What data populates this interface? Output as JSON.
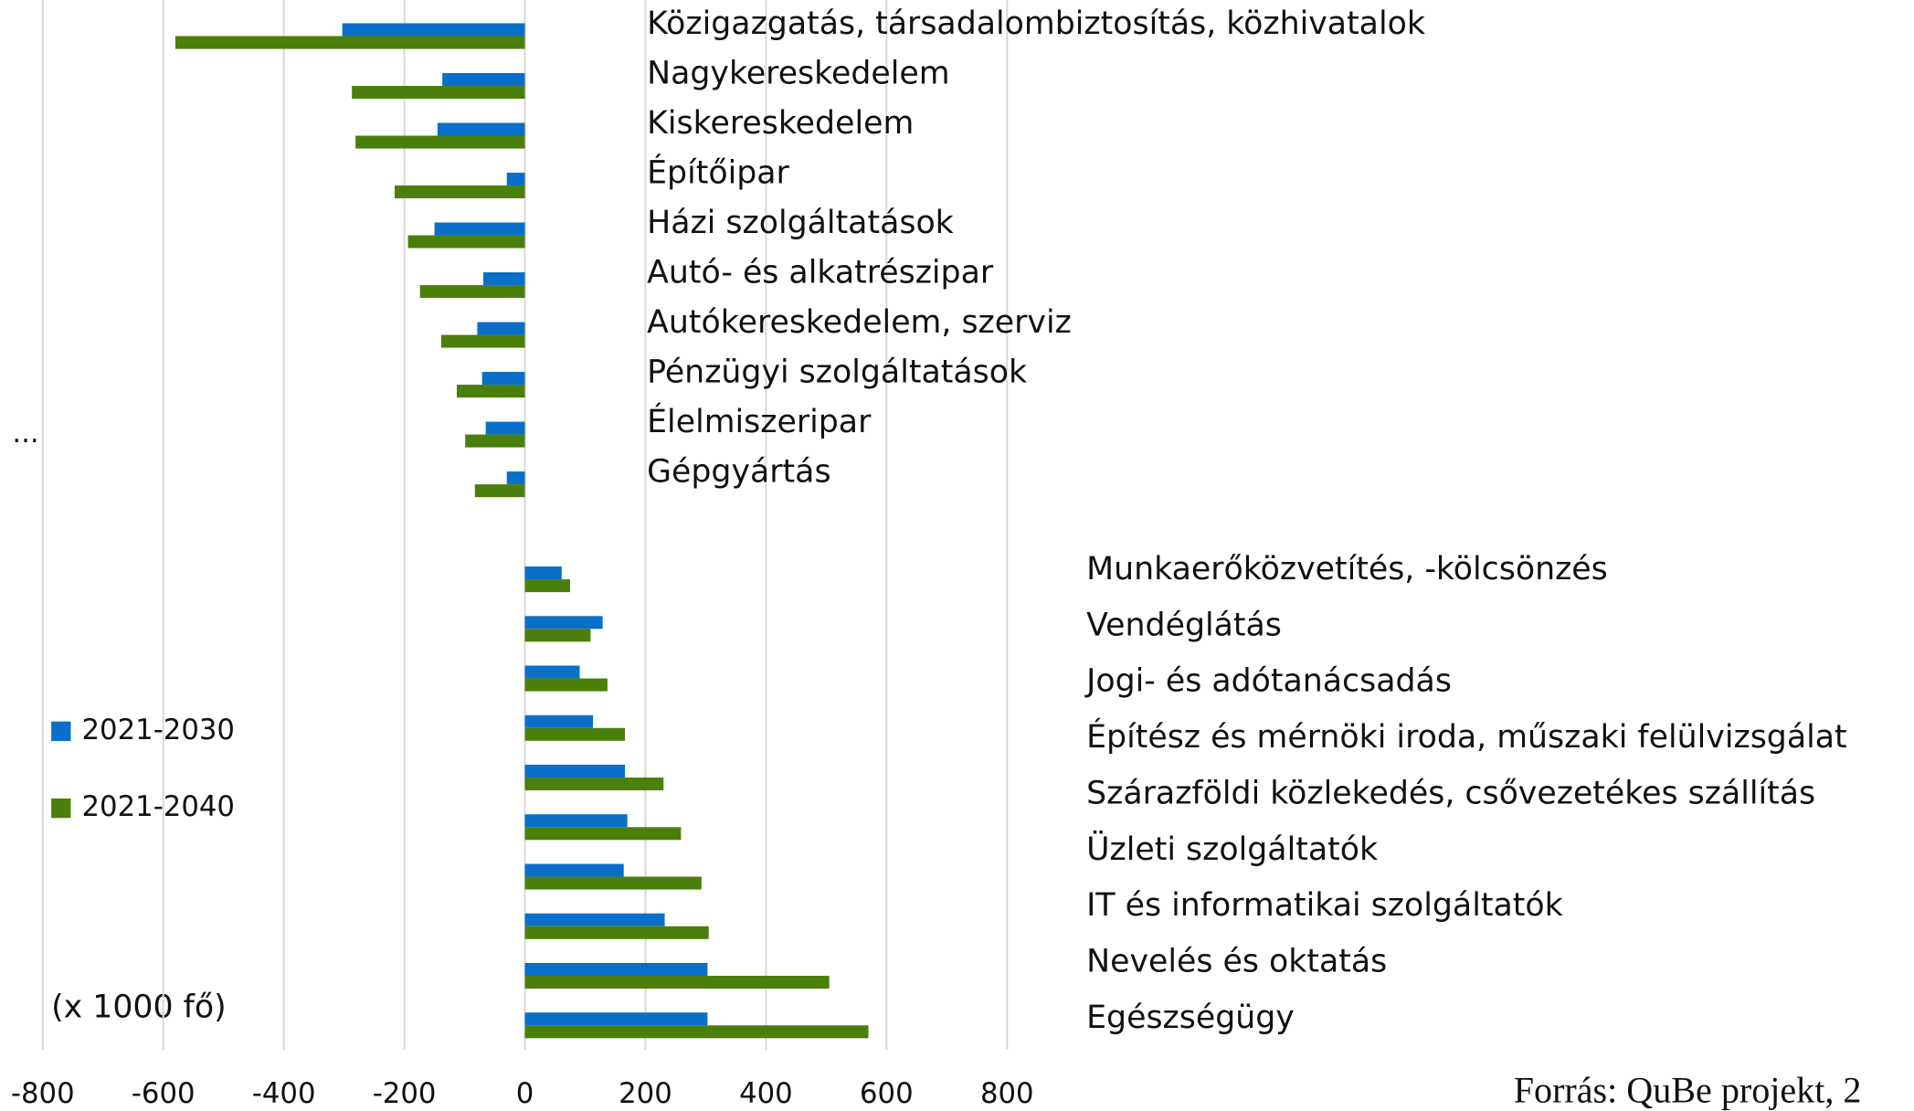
{
  "chart_data": {
    "type": "bar",
    "orientation": "horizontal",
    "categories": [
      "Közigazgatás, társadalombiztosítás, közhivatalok",
      "Nagykereskedelem",
      "Kiskereskedelem",
      "Építőipar",
      "Házi szolgáltatások",
      "Autó- és alkatrészipar",
      "Autókereskedelem, szerviz",
      "Pénzügyi szolgáltatások",
      "Élelmiszeripar",
      "Gépgyártás",
      "Munkaerőközvetítés, -kölcsönzés",
      "Vendéglátás",
      "Jogi- és adótanácsadás",
      "Építész és mérnöki iroda, műszaki felülvizsgálat",
      "Szárazföldi közlekedés, csővezetékes szállítás",
      "Üzleti szolgáltatók",
      "IT és informatikai szolgáltatók",
      "Nevelés és oktatás",
      null,
      "Egészségügy"
    ],
    "series": [
      {
        "name": "2021-2030",
        "color": "#0a6fc8",
        "values": [
          -303,
          -137,
          -145,
          -30,
          -150,
          -69,
          -79,
          -71,
          -65,
          -30,
          61,
          129,
          91,
          113,
          166,
          170,
          164,
          232,
          303,
          303
        ]
      },
      {
        "name": "2021-2040",
        "color": "#4a7f0c",
        "values": [
          -580,
          -287,
          -281,
          -216,
          -194,
          -174,
          -139,
          -113,
          -99,
          -83,
          75,
          109,
          137,
          166,
          230,
          259,
          293,
          305,
          505,
          570
        ]
      }
    ],
    "xlim": [
      -800,
      800
    ],
    "xticks": [
      -800,
      -600,
      -400,
      -200,
      0,
      200,
      400,
      600,
      800
    ],
    "grid": true,
    "legend": "left",
    "unit_note": "(x 1000 fő)",
    "ellipsis": "...",
    "source": "Forrás: QuBe projekt, 2"
  }
}
